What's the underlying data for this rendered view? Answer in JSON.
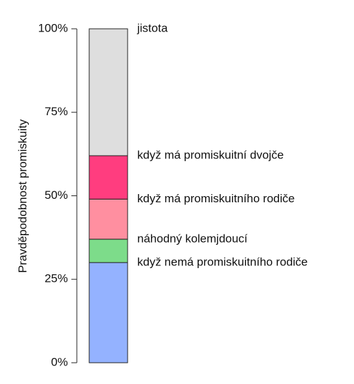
{
  "chart_data": {
    "type": "stacked-bar",
    "y_label": "Pravděpodobnost promiskuity",
    "categories": [
      null
    ],
    "series": [
      {
        "name": "když nemá promiskuitního rodiče",
        "color": "#94b2ff",
        "label_color": "#6f95f0",
        "values": [
          30
        ]
      },
      {
        "name": "náhodný kolemjdoucí",
        "color": "#7ddc8a",
        "label_color": "#5cc86c",
        "values": [
          7
        ]
      },
      {
        "name": "když má promiskuitního rodiče",
        "color": "#ff8fa0",
        "label_color": "#ff8fa0",
        "values": [
          12
        ]
      },
      {
        "name": "když má promiskuitní dvojče",
        "color": "#ff3d7f",
        "label_color": "#f0306f",
        "values": [
          13
        ]
      },
      {
        "name": "jistota",
        "color": "#dedede",
        "label_color": "#9a9a9a",
        "values": [
          38
        ]
      }
    ],
    "ylim": [
      0,
      100
    ],
    "yticks": [
      {
        "value": 0,
        "label": "0%"
      },
      {
        "value": 25,
        "label": "25%"
      },
      {
        "value": 50,
        "label": "50%"
      },
      {
        "value": 75,
        "label": "75%"
      },
      {
        "value": 100,
        "label": "100%"
      }
    ]
  }
}
